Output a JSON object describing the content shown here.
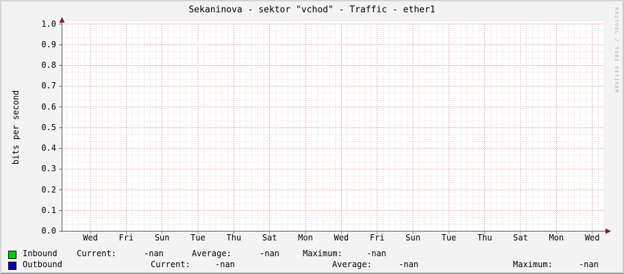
{
  "chart_data": {
    "type": "line",
    "title": "Sekaninova - sektor \"vchod\" - Traffic - ether1",
    "ylabel": "bits per second",
    "xlabel": "",
    "ylim": [
      0.0,
      1.0
    ],
    "yticks": [
      "0.0",
      "0.1",
      "0.2",
      "0.3",
      "0.4",
      "0.5",
      "0.6",
      "0.7",
      "0.8",
      "0.9",
      "1.0"
    ],
    "xticklabels": [
      "Wed",
      "Fri",
      "Sun",
      "Tue",
      "Thu",
      "Sat",
      "Mon",
      "Wed",
      "Fri",
      "Sun",
      "Tue",
      "Thu",
      "Sat",
      "Mon",
      "Wed"
    ],
    "grid": true,
    "legend_position": "bottom",
    "series": [
      {
        "name": "Inbound",
        "color": "#00cc00",
        "values": []
      },
      {
        "name": "Outbound",
        "color": "#0000bb",
        "values": []
      }
    ]
  },
  "watermark": "RRDTOOL / TOBI OETIKER",
  "legend": {
    "rows": [
      {
        "label": "Inbound",
        "color": "#00cc00",
        "current_label": "Current:",
        "current_value": "-nan",
        "average_label": "Average:",
        "average_value": "-nan",
        "maximum_label": "Maximum:",
        "maximum_value": "-nan"
      },
      {
        "label": "Outbound",
        "color": "#0000bb",
        "current_label": "Current:",
        "current_value": "-nan",
        "average_label": "Average:",
        "average_value": "-nan",
        "maximum_label": "Maximum:",
        "maximum_value": "-nan"
      }
    ]
  },
  "colors": {
    "background": "#f3f3f3",
    "canvas": "#ffffff",
    "major_grid": "#e06a6a",
    "minor_grid_vertical": "#f2c3c3",
    "minor_grid_horizontal": "#d9d9d9",
    "axis": "#5a5a5a",
    "arrow": "#8c1a1a"
  }
}
